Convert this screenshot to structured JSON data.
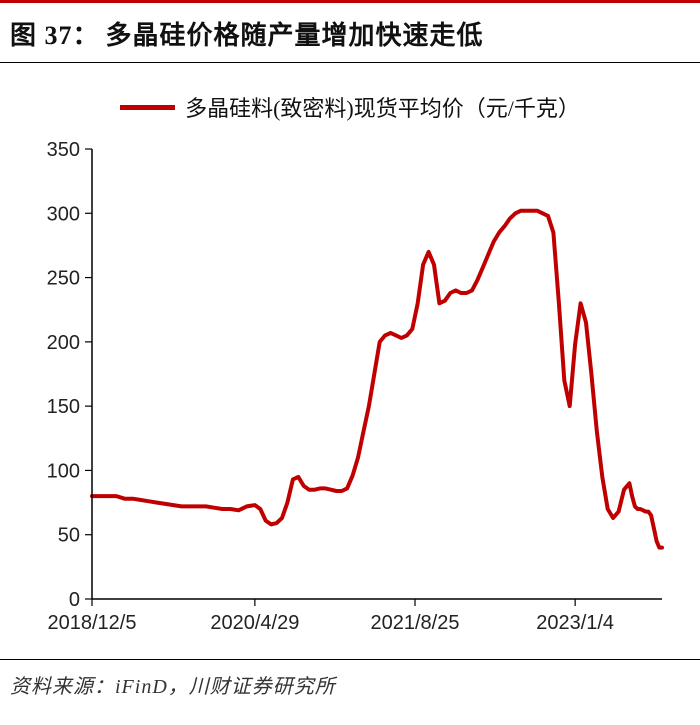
{
  "title_prefix": "图 37：",
  "title_text": "多晶硅价格随产量增加快速走低",
  "legend_label": "多晶硅料(致密料)现货平均价（元/千克）",
  "source_label": "资料来源：",
  "source_value": "iFinD，川财证券研究所",
  "chart": {
    "type": "line",
    "line_color": "#c00000",
    "line_width": 4,
    "axis_color": "#000000",
    "tick_color": "#000000",
    "background_color": "#ffffff",
    "title_fontsize": 26,
    "axis_fontsize": 20,
    "legend_fontsize": 22,
    "ylim": [
      0,
      350
    ],
    "ytick_step": 50,
    "yticks": [
      0,
      50,
      100,
      150,
      200,
      250,
      300,
      350
    ],
    "x_range_index": [
      0,
      210
    ],
    "xticks": [
      {
        "idx": 0,
        "label": "2018/12/5"
      },
      {
        "idx": 60,
        "label": "2020/4/29"
      },
      {
        "idx": 119,
        "label": "2021/8/25"
      },
      {
        "idx": 178,
        "label": "2023/1/4"
      }
    ],
    "series": [
      {
        "name": "polysilicon_spot_avg",
        "points": [
          [
            0,
            80
          ],
          [
            3,
            80
          ],
          [
            6,
            80
          ],
          [
            9,
            80
          ],
          [
            12,
            78
          ],
          [
            15,
            78
          ],
          [
            18,
            77
          ],
          [
            21,
            76
          ],
          [
            24,
            75
          ],
          [
            27,
            74
          ],
          [
            30,
            73
          ],
          [
            33,
            72
          ],
          [
            36,
            72
          ],
          [
            39,
            72
          ],
          [
            42,
            72
          ],
          [
            45,
            71
          ],
          [
            48,
            70
          ],
          [
            51,
            70
          ],
          [
            54,
            69
          ],
          [
            57,
            72
          ],
          [
            60,
            73
          ],
          [
            62,
            70
          ],
          [
            64,
            61
          ],
          [
            66,
            58
          ],
          [
            68,
            59
          ],
          [
            70,
            63
          ],
          [
            72,
            75
          ],
          [
            74,
            93
          ],
          [
            76,
            95
          ],
          [
            78,
            88
          ],
          [
            80,
            85
          ],
          [
            82,
            85
          ],
          [
            84,
            86
          ],
          [
            86,
            86
          ],
          [
            88,
            85
          ],
          [
            90,
            84
          ],
          [
            92,
            84
          ],
          [
            94,
            86
          ],
          [
            96,
            96
          ],
          [
            98,
            110
          ],
          [
            100,
            130
          ],
          [
            102,
            150
          ],
          [
            104,
            175
          ],
          [
            106,
            200
          ],
          [
            108,
            205
          ],
          [
            110,
            207
          ],
          [
            112,
            205
          ],
          [
            114,
            203
          ],
          [
            116,
            205
          ],
          [
            118,
            210
          ],
          [
            120,
            230
          ],
          [
            122,
            260
          ],
          [
            124,
            270
          ],
          [
            126,
            260
          ],
          [
            128,
            230
          ],
          [
            130,
            232
          ],
          [
            132,
            238
          ],
          [
            134,
            240
          ],
          [
            136,
            238
          ],
          [
            138,
            238
          ],
          [
            140,
            240
          ],
          [
            142,
            248
          ],
          [
            144,
            258
          ],
          [
            146,
            268
          ],
          [
            148,
            278
          ],
          [
            150,
            285
          ],
          [
            152,
            290
          ],
          [
            154,
            296
          ],
          [
            156,
            300
          ],
          [
            158,
            302
          ],
          [
            160,
            302
          ],
          [
            162,
            302
          ],
          [
            164,
            302
          ],
          [
            166,
            300
          ],
          [
            168,
            298
          ],
          [
            170,
            285
          ],
          [
            172,
            230
          ],
          [
            174,
            170
          ],
          [
            176,
            150
          ],
          [
            178,
            198
          ],
          [
            180,
            230
          ],
          [
            182,
            215
          ],
          [
            184,
            175
          ],
          [
            186,
            130
          ],
          [
            188,
            95
          ],
          [
            190,
            70
          ],
          [
            192,
            63
          ],
          [
            194,
            68
          ],
          [
            196,
            85
          ],
          [
            198,
            90
          ],
          [
            199,
            80
          ],
          [
            200,
            72
          ],
          [
            201,
            70
          ],
          [
            202,
            70
          ],
          [
            203,
            69
          ],
          [
            204,
            68
          ],
          [
            205,
            68
          ],
          [
            206,
            65
          ],
          [
            207,
            55
          ],
          [
            208,
            45
          ],
          [
            209,
            40
          ],
          [
            210,
            40
          ]
        ]
      }
    ]
  }
}
